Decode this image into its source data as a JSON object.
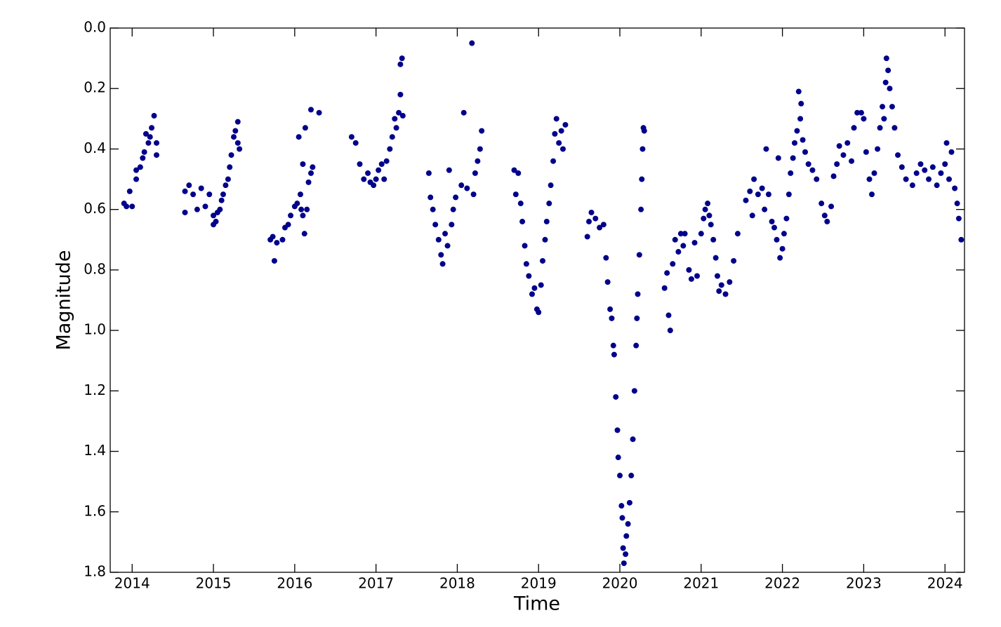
{
  "chart_data": {
    "type": "scatter",
    "xlabel": "Time",
    "ylabel": "Magnitude",
    "color": "#00008b",
    "xlim": [
      2013.73,
      2024.24
    ],
    "ylim": [
      1.8,
      0
    ],
    "xticks": [
      2014,
      2015,
      2016,
      2017,
      2018,
      2019,
      2020,
      2021,
      2022,
      2023,
      2024
    ],
    "yticks": [
      {
        "value": 0,
        "label": "0.0"
      },
      0.2,
      0.4,
      0.6,
      0.8,
      {
        "value": 1,
        "label": "1.0"
      },
      1.2,
      1.4,
      1.6,
      1.8
    ],
    "x": [
      2013.9,
      2013.93,
      2013.97,
      2014.0,
      2014.05,
      2014.05,
      2014.1,
      2014.13,
      2014.15,
      2014.17,
      2014.2,
      2014.22,
      2014.24,
      2014.27,
      2014.3,
      2014.3,
      2014.65,
      2014.65,
      2014.7,
      2014.75,
      2014.8,
      2014.85,
      2014.9,
      2014.95,
      2015.0,
      2015.0,
      2015.03,
      2015.05,
      2015.08,
      2015.1,
      2015.12,
      2015.15,
      2015.18,
      2015.2,
      2015.22,
      2015.25,
      2015.27,
      2015.3,
      2015.3,
      2015.32,
      2015.7,
      2015.73,
      2015.75,
      2015.78,
      2015.85,
      2015.88,
      2015.92,
      2015.95,
      2016.0,
      2016.03,
      2016.05,
      2016.07,
      2016.08,
      2016.1,
      2016.1,
      2016.12,
      2016.13,
      2016.15,
      2016.17,
      2016.2,
      2016.2,
      2016.22,
      2016.3,
      2016.7,
      2016.75,
      2016.8,
      2016.85,
      2016.9,
      2016.93,
      2016.97,
      2017.0,
      2017.03,
      2017.07,
      2017.1,
      2017.13,
      2017.17,
      2017.2,
      2017.23,
      2017.25,
      2017.28,
      2017.3,
      2017.3,
      2017.32,
      2017.33,
      2017.65,
      2017.67,
      2017.7,
      2017.73,
      2017.77,
      2017.8,
      2017.82,
      2017.85,
      2017.88,
      2017.9,
      2017.93,
      2017.95,
      2017.98,
      2018.05,
      2018.08,
      2018.12,
      2018.18,
      2018.2,
      2018.22,
      2018.25,
      2018.28,
      2018.3,
      2018.7,
      2018.72,
      2018.75,
      2018.78,
      2018.8,
      2018.83,
      2018.85,
      2018.88,
      2018.92,
      2018.95,
      2018.98,
      2019.0,
      2019.03,
      2019.05,
      2019.08,
      2019.1,
      2019.13,
      2019.15,
      2019.18,
      2019.2,
      2019.22,
      2019.25,
      2019.28,
      2019.3,
      2019.33,
      2019.6,
      2019.62,
      2019.65,
      2019.7,
      2019.75,
      2019.8,
      2019.83,
      2019.85,
      2019.88,
      2019.9,
      2019.92,
      2019.93,
      2019.95,
      2019.97,
      2019.98,
      2020.0,
      2020.02,
      2020.03,
      2020.04,
      2020.05,
      2020.07,
      2020.08,
      2020.1,
      2020.12,
      2020.14,
      2020.16,
      2020.18,
      2020.2,
      2020.21,
      2020.22,
      2020.24,
      2020.26,
      2020.27,
      2020.28,
      2020.3,
      2020.29,
      2020.55,
      2020.58,
      2020.6,
      2020.62,
      2020.65,
      2020.68,
      2020.72,
      2020.75,
      2020.78,
      2020.8,
      2020.85,
      2020.88,
      2020.92,
      2020.95,
      2021.0,
      2021.03,
      2021.05,
      2021.08,
      2021.1,
      2021.12,
      2021.15,
      2021.18,
      2021.2,
      2021.22,
      2021.25,
      2021.3,
      2021.35,
      2021.4,
      2021.45,
      2021.55,
      2021.6,
      2021.63,
      2021.65,
      2021.7,
      2021.75,
      2021.78,
      2021.8,
      2021.83,
      2021.87,
      2021.9,
      2021.93,
      2021.95,
      2021.97,
      2022.0,
      2022.02,
      2022.05,
      2022.08,
      2022.1,
      2022.13,
      2022.15,
      2022.18,
      2022.2,
      2022.22,
      2022.23,
      2022.25,
      2022.28,
      2022.32,
      2022.37,
      2022.42,
      2022.48,
      2022.52,
      2022.55,
      2022.6,
      2022.63,
      2022.67,
      2022.7,
      2022.75,
      2022.8,
      2022.85,
      2022.88,
      2022.92,
      2022.97,
      2023.0,
      2023.03,
      2023.07,
      2023.1,
      2023.13,
      2023.17,
      2023.2,
      2023.23,
      2023.25,
      2023.27,
      2023.28,
      2023.3,
      2023.32,
      2023.35,
      2023.38,
      2023.42,
      2023.47,
      2023.52,
      2023.6,
      2023.65,
      2023.7,
      2023.75,
      2023.8,
      2023.85,
      2023.9,
      2023.95,
      2024.0,
      2024.02,
      2024.05,
      2024.08,
      2024.12,
      2024.15,
      2024.17,
      2024.2
    ],
    "values": [
      0.58,
      0.59,
      0.54,
      0.59,
      0.5,
      0.47,
      0.46,
      0.43,
      0.41,
      0.35,
      0.38,
      0.36,
      0.33,
      0.29,
      0.38,
      0.42,
      0.54,
      0.61,
      0.52,
      0.55,
      0.6,
      0.53,
      0.59,
      0.55,
      0.62,
      0.65,
      0.64,
      0.61,
      0.6,
      0.57,
      0.55,
      0.52,
      0.5,
      0.46,
      0.42,
      0.36,
      0.34,
      0.38,
      0.31,
      0.4,
      0.7,
      0.69,
      0.77,
      0.71,
      0.7,
      0.66,
      0.65,
      0.62,
      0.59,
      0.58,
      0.36,
      0.55,
      0.6,
      0.45,
      0.62,
      0.68,
      0.33,
      0.6,
      0.51,
      0.48,
      0.27,
      0.46,
      0.28,
      0.36,
      0.38,
      0.45,
      0.5,
      0.48,
      0.51,
      0.52,
      0.5,
      0.47,
      0.45,
      0.5,
      0.44,
      0.4,
      0.36,
      0.3,
      0.33,
      0.28,
      0.22,
      0.12,
      0.1,
      0.29,
      0.48,
      0.56,
      0.6,
      0.65,
      0.7,
      0.75,
      0.78,
      0.68,
      0.72,
      0.47,
      0.65,
      0.6,
      0.56,
      0.52,
      0.28,
      0.53,
      0.05,
      0.55,
      0.48,
      0.44,
      0.4,
      0.34,
      0.47,
      0.55,
      0.48,
      0.58,
      0.64,
      0.72,
      0.78,
      0.82,
      0.88,
      0.86,
      0.93,
      0.94,
      0.85,
      0.77,
      0.7,
      0.64,
      0.58,
      0.52,
      0.44,
      0.35,
      0.3,
      0.38,
      0.34,
      0.4,
      0.32,
      0.69,
      0.64,
      0.61,
      0.63,
      0.66,
      0.65,
      0.76,
      0.84,
      0.93,
      0.96,
      1.05,
      1.08,
      1.22,
      1.33,
      1.42,
      1.48,
      1.58,
      1.62,
      1.72,
      1.77,
      1.74,
      1.68,
      1.64,
      1.57,
      1.48,
      1.36,
      1.2,
      1.05,
      0.96,
      0.88,
      0.75,
      0.6,
      0.5,
      0.4,
      0.34,
      0.33,
      0.86,
      0.81,
      0.95,
      1.0,
      0.78,
      0.7,
      0.74,
      0.68,
      0.72,
      0.68,
      0.8,
      0.83,
      0.71,
      0.82,
      0.68,
      0.63,
      0.6,
      0.58,
      0.62,
      0.65,
      0.7,
      0.76,
      0.82,
      0.87,
      0.85,
      0.88,
      0.84,
      0.77,
      0.68,
      0.57,
      0.54,
      0.62,
      0.5,
      0.55,
      0.53,
      0.6,
      0.4,
      0.55,
      0.64,
      0.66,
      0.7,
      0.43,
      0.76,
      0.73,
      0.68,
      0.63,
      0.55,
      0.48,
      0.43,
      0.38,
      0.34,
      0.21,
      0.3,
      0.25,
      0.37,
      0.41,
      0.45,
      0.47,
      0.5,
      0.58,
      0.62,
      0.64,
      0.59,
      0.49,
      0.45,
      0.39,
      0.42,
      0.38,
      0.44,
      0.33,
      0.28,
      0.28,
      0.3,
      0.41,
      0.5,
      0.55,
      0.48,
      0.4,
      0.33,
      0.26,
      0.3,
      0.18,
      0.1,
      0.14,
      0.2,
      0.26,
      0.33,
      0.42,
      0.46,
      0.5,
      0.52,
      0.48,
      0.45,
      0.47,
      0.5,
      0.46,
      0.52,
      0.48,
      0.45,
      0.38,
      0.5,
      0.41,
      0.53,
      0.58,
      0.63,
      0.7
    ]
  }
}
